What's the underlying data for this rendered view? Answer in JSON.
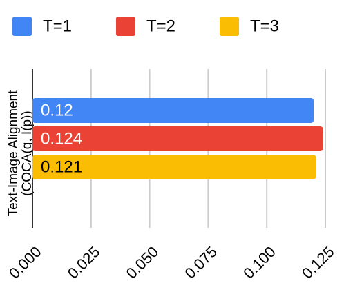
{
  "chart_data": {
    "type": "hbar",
    "ylabel": [
      "Text-Image Alignment",
      "(COCA(q, I(p))"
    ],
    "categories": [
      null
    ],
    "series": [
      {
        "name": "T=1",
        "color": "#4285f4",
        "values": [
          0.12
        ]
      },
      {
        "name": "T=2",
        "color": "#ea4335",
        "values": [
          0.124
        ]
      },
      {
        "name": "T=3",
        "color": "#fbbc04",
        "values": [
          0.121
        ]
      }
    ],
    "xlim": [
      0,
      0.125
    ],
    "xticks": [
      {
        "value": 0,
        "label": "0.000"
      },
      {
        "value": 0.025,
        "label": "0.025"
      },
      {
        "value": 0.05,
        "label": "0.050"
      },
      {
        "value": 0.075,
        "label": "0.075"
      },
      {
        "value": 0.1,
        "label": "0.100"
      },
      {
        "value": 0.125,
        "label": "0.125"
      }
    ],
    "grid": true,
    "legend": "top"
  }
}
